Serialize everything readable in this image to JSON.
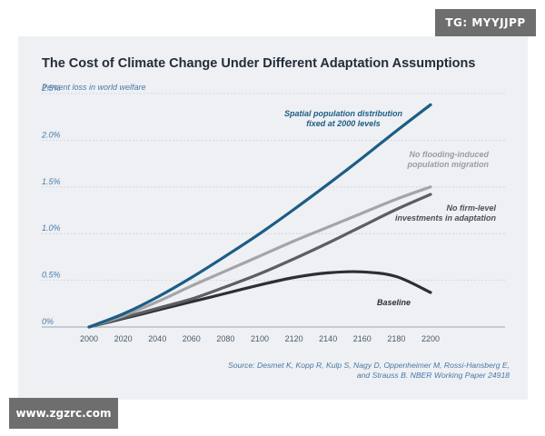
{
  "watermarks": {
    "top_right": "TG: MYYJJPP",
    "bottom_left": "www.zgzrc.com"
  },
  "chart_data": {
    "type": "line",
    "title": "The Cost of Climate Change Under Different Adaptation Assumptions",
    "ylabel": "Percent loss in world welfare",
    "xlabel": "",
    "xlim": [
      2000,
      2200
    ],
    "ylim": [
      0,
      2.5
    ],
    "grid": true,
    "x_ticks": [
      2000,
      2020,
      2040,
      2060,
      2080,
      2100,
      2120,
      2140,
      2160,
      2180,
      2200
    ],
    "y_ticks": [
      {
        "value": 0,
        "label": "0%"
      },
      {
        "value": 0.5,
        "label": "0.5%"
      },
      {
        "value": 1.0,
        "label": "1.0%"
      },
      {
        "value": 1.5,
        "label": "1.5%"
      },
      {
        "value": 2.0,
        "label": "2.0%"
      },
      {
        "value": 2.5,
        "label": "2.5%"
      }
    ],
    "series": [
      {
        "name": "Spatial population distribution fixed at 2000 levels",
        "color": "#1b5d86",
        "x": [
          2000,
          2020,
          2040,
          2060,
          2080,
          2100,
          2120,
          2140,
          2160,
          2180,
          2200
        ],
        "y": [
          0,
          0.14,
          0.32,
          0.53,
          0.76,
          1.0,
          1.26,
          1.53,
          1.81,
          2.1,
          2.38
        ]
      },
      {
        "name": "No flooding-induced population migration",
        "color": "#a3a5a9",
        "x": [
          2000,
          2020,
          2040,
          2060,
          2080,
          2100,
          2120,
          2140,
          2160,
          2180,
          2200
        ],
        "y": [
          0,
          0.12,
          0.27,
          0.44,
          0.6,
          0.76,
          0.92,
          1.07,
          1.22,
          1.37,
          1.5
        ]
      },
      {
        "name": "No firm-level investments in adaptation",
        "color": "#5b5e63",
        "x": [
          2000,
          2020,
          2040,
          2060,
          2080,
          2100,
          2120,
          2140,
          2160,
          2180,
          2200
        ],
        "y": [
          0,
          0.1,
          0.2,
          0.3,
          0.43,
          0.57,
          0.73,
          0.9,
          1.08,
          1.26,
          1.42
        ]
      },
      {
        "name": "Baseline",
        "color": "#2c2f34",
        "x": [
          2000,
          2020,
          2040,
          2060,
          2080,
          2100,
          2120,
          2140,
          2160,
          2180,
          2200
        ],
        "y": [
          0,
          0.09,
          0.18,
          0.27,
          0.36,
          0.45,
          0.53,
          0.58,
          0.59,
          0.54,
          0.37
        ]
      }
    ],
    "series_labels": [
      [
        "Spatial population distribution",
        "fixed at 2000 levels"
      ],
      [
        "No flooding-induced",
        "population migration"
      ],
      [
        "No firm-level",
        "investments in adaptation"
      ],
      [
        "Baseline"
      ]
    ],
    "source": [
      "Source: Desmet K, Kopp R, Kulp S, Nagy D, Oppenheimer M, Rossi-Hansberg E,",
      "and Strauss B. NBER Working Paper 24918"
    ]
  }
}
